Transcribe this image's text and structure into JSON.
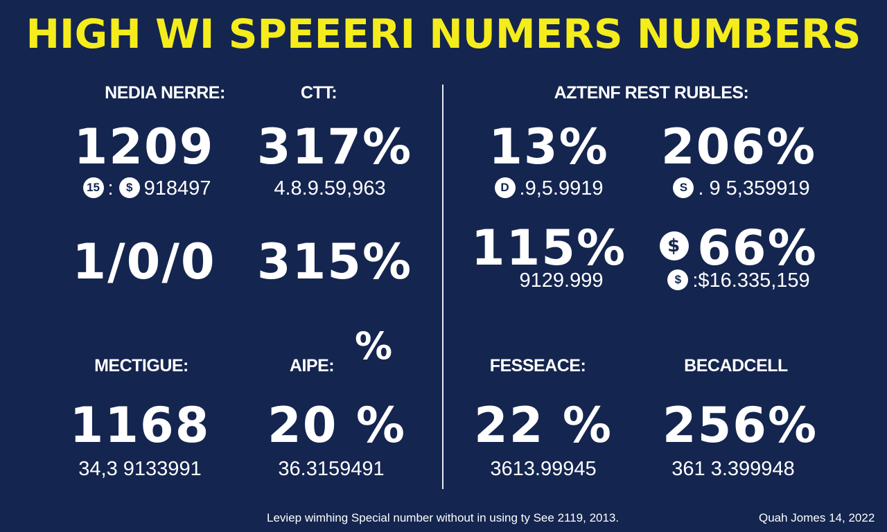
{
  "title": "HIGH WI SPEEERI NUMERS NUMBERS",
  "colors": {
    "background": "#14254f",
    "title": "#f5ec1c",
    "text": "#ffffff"
  },
  "left_top": {
    "col1": {
      "label": "NEDIA NERRE:",
      "value1": "1209",
      "coin1": "15",
      "coin2": "$",
      "sub1": "918497",
      "sub1_sep": ":",
      "value2": "1/0/0"
    },
    "col2": {
      "label": "CTT:",
      "value1": "317%",
      "sub1": "4.8.9.59,963",
      "value2": "315%"
    }
  },
  "right_top": {
    "label": "AZTENF REST RUBLES:",
    "col1": {
      "value1": "13%",
      "coin1": "D",
      "sub1": ".9,5.9919",
      "value2": "115%",
      "sub2": "9129.999"
    },
    "col2": {
      "value1": "206%",
      "coin1": "S",
      "sub1": ". 9 5,359919",
      "coin2": "$",
      "value2": "66%",
      "coin3": "$",
      "sub2": ":$16.335,159"
    }
  },
  "bottom": {
    "lone_pct": "%",
    "col1": {
      "label": "MECTIGUE:",
      "value": "1168",
      "sub": "34,3 9133991"
    },
    "col2": {
      "label": "AIPE:",
      "value": "20 %",
      "sub": "36.3159491"
    },
    "col3": {
      "label": "FESSEACE:",
      "value": "22 %",
      "sub": "3613.99945"
    },
    "col4": {
      "label": "BECADCELL",
      "value": "256%",
      "sub": "361 3.399948"
    }
  },
  "footer": {
    "note": "Leviep wimhing Special number without in using ty See 2119, 2013.",
    "credit": "Quah Jomes 14, 2022"
  }
}
